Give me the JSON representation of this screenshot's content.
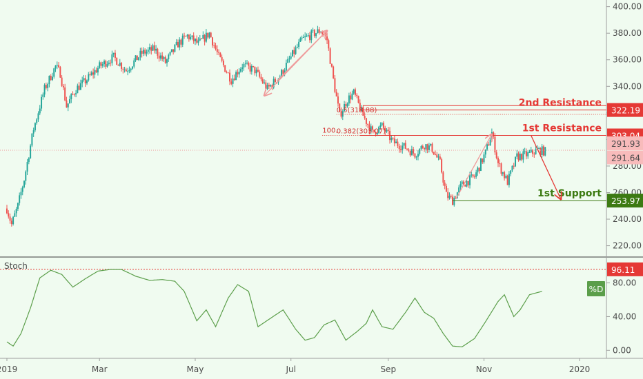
{
  "chart_data": [
    {
      "type": "candlestick",
      "symbol_note": "",
      "x_ticks": [
        "2019",
        "Mar",
        "May",
        "Jul",
        "Sep",
        "Nov",
        "2020"
      ],
      "y_ticks": [
        "400.00",
        "380.00",
        "360.00",
        "340.00",
        "320.00",
        "300.00",
        "280.00",
        "260.00",
        "240.00",
        "220.00"
      ],
      "ylim": [
        212,
        405
      ],
      "x_range": [
        "2019-01-01",
        "2019-12-31"
      ],
      "series_anchors": [
        [
          "2019-01-01",
          248
        ],
        [
          "2019-01-04",
          236
        ],
        [
          "2019-01-08",
          250
        ],
        [
          "2019-01-12",
          270
        ],
        [
          "2019-01-18",
          308
        ],
        [
          "2019-01-25",
          338
        ],
        [
          "2019-02-01",
          355
        ],
        [
          "2019-02-04",
          350
        ],
        [
          "2019-02-08",
          325
        ],
        [
          "2019-02-14",
          338
        ],
        [
          "2019-02-20",
          344
        ],
        [
          "2019-03-01",
          355
        ],
        [
          "2019-03-10",
          362
        ],
        [
          "2019-03-18",
          352
        ],
        [
          "2019-03-28",
          365
        ],
        [
          "2019-04-05",
          368
        ],
        [
          "2019-04-12",
          358
        ],
        [
          "2019-04-20",
          372
        ],
        [
          "2019-04-26",
          378
        ],
        [
          "2019-05-03",
          372
        ],
        [
          "2019-05-10",
          380
        ],
        [
          "2019-05-16",
          362
        ],
        [
          "2019-05-24",
          345
        ],
        [
          "2019-05-31",
          356
        ],
        [
          "2019-06-08",
          352
        ],
        [
          "2019-06-16",
          338
        ],
        [
          "2019-06-24",
          348
        ],
        [
          "2019-07-01",
          362
        ],
        [
          "2019-07-08",
          375
        ],
        [
          "2019-07-16",
          380
        ],
        [
          "2019-07-20",
          382
        ],
        [
          "2019-07-24",
          375
        ],
        [
          "2019-07-28",
          345
        ],
        [
          "2019-08-01",
          318
        ],
        [
          "2019-08-06",
          330
        ],
        [
          "2019-08-10",
          335
        ],
        [
          "2019-08-16",
          318
        ],
        [
          "2019-08-22",
          305
        ],
        [
          "2019-08-28",
          310
        ],
        [
          "2019-09-04",
          298
        ],
        [
          "2019-09-12",
          294
        ],
        [
          "2019-09-18",
          289
        ],
        [
          "2019-09-24",
          296
        ],
        [
          "2019-09-29",
          293
        ],
        [
          "2019-10-04",
          282
        ],
        [
          "2019-10-08",
          258
        ],
        [
          "2019-10-12",
          254
        ],
        [
          "2019-10-18",
          266
        ],
        [
          "2019-10-26",
          272
        ],
        [
          "2019-11-02",
          290
        ],
        [
          "2019-11-06",
          305
        ],
        [
          "2019-11-10",
          282
        ],
        [
          "2019-11-16",
          268
        ],
        [
          "2019-11-22",
          287
        ],
        [
          "2019-11-30",
          289
        ],
        [
          "2019-12-05",
          292
        ],
        [
          "2019-12-10",
          291
        ]
      ],
      "current_price_labels": [
        "291.93",
        "291.64"
      ],
      "levels": [
        {
          "label": "2nd Resistance",
          "value": "322.19",
          "price": 322.19,
          "color": "#e53935",
          "from": "2019-08-14"
        },
        {
          "label": "1st Resistance",
          "value": "303.04",
          "price": 303.04,
          "color": "#e53935",
          "from": "2019-08-14"
        },
        {
          "label": "1st Support",
          "value": "253.97",
          "price": 253.97,
          "color": "#3c7a12",
          "from": "2019-10-12"
        }
      ],
      "fib_labels": [
        {
          "text": "0.5(318.88)",
          "price": 318.88,
          "at": "2019-07-30"
        },
        {
          "text": "0.382(303.07)",
          "price": 303.07,
          "at": "2019-07-30"
        },
        {
          "text": "100.",
          "price": 303.5,
          "at": "2019-07-21"
        }
      ],
      "arrows": [
        {
          "from": [
            "2019-06-22",
            344
          ],
          "to": [
            "2019-07-24",
            382
          ],
          "color": "#ef9a9a"
        },
        {
          "from": [
            "2019-07-24",
            382
          ],
          "to": [
            "2019-06-14",
            333
          ],
          "color": "#ef9a9a"
        },
        {
          "from": [
            "2019-10-14",
            255
          ],
          "to": [
            "2019-11-06",
            304
          ],
          "color": "#ef9a9a"
        },
        {
          "from": [
            "2019-12-01",
            303
          ],
          "to": [
            "2019-12-20",
            255
          ],
          "color": "#e53935"
        }
      ],
      "colors": {
        "up": "#26a69a",
        "down": "#ef5350",
        "background": "#f0fbf0"
      }
    },
    {
      "type": "line",
      "indicator_label": "Stoch",
      "legend_badge": "%D",
      "y_ticks": [
        "80.00",
        "40.00",
        "0.00"
      ],
      "ylim": [
        -3,
        105
      ],
      "reference": {
        "value": "96.11",
        "level": 96.11,
        "color": "#e53935"
      },
      "line_color": "#5b9e4a",
      "series_anchors": [
        [
          "2019-01-01",
          10
        ],
        [
          "2019-01-05",
          5
        ],
        [
          "2019-01-10",
          20
        ],
        [
          "2019-01-16",
          50
        ],
        [
          "2019-01-22",
          86
        ],
        [
          "2019-01-29",
          95
        ],
        [
          "2019-02-05",
          90
        ],
        [
          "2019-02-12",
          75
        ],
        [
          "2019-02-20",
          85
        ],
        [
          "2019-02-28",
          94
        ],
        [
          "2019-03-08",
          96
        ],
        [
          "2019-03-15",
          96
        ],
        [
          "2019-03-24",
          88
        ],
        [
          "2019-04-02",
          83
        ],
        [
          "2019-04-10",
          84
        ],
        [
          "2019-04-18",
          82
        ],
        [
          "2019-04-24",
          70
        ],
        [
          "2019-05-02",
          35
        ],
        [
          "2019-05-08",
          48
        ],
        [
          "2019-05-14",
          28
        ],
        [
          "2019-05-22",
          62
        ],
        [
          "2019-05-28",
          78
        ],
        [
          "2019-06-04",
          70
        ],
        [
          "2019-06-10",
          28
        ],
        [
          "2019-06-18",
          38
        ],
        [
          "2019-06-26",
          48
        ],
        [
          "2019-07-04",
          25
        ],
        [
          "2019-07-10",
          12
        ],
        [
          "2019-07-16",
          15
        ],
        [
          "2019-07-22",
          30
        ],
        [
          "2019-07-29",
          36
        ],
        [
          "2019-08-05",
          12
        ],
        [
          "2019-08-12",
          22
        ],
        [
          "2019-08-18",
          32
        ],
        [
          "2019-08-22",
          48
        ],
        [
          "2019-08-28",
          28
        ],
        [
          "2019-09-04",
          25
        ],
        [
          "2019-09-12",
          45
        ],
        [
          "2019-09-18",
          62
        ],
        [
          "2019-09-24",
          45
        ],
        [
          "2019-09-30",
          38
        ],
        [
          "2019-10-06",
          20
        ],
        [
          "2019-10-12",
          5
        ],
        [
          "2019-10-18",
          4
        ],
        [
          "2019-10-26",
          14
        ],
        [
          "2019-11-02",
          34
        ],
        [
          "2019-11-10",
          58
        ],
        [
          "2019-11-14",
          66
        ],
        [
          "2019-11-20",
          40
        ],
        [
          "2019-11-24",
          48
        ],
        [
          "2019-11-30",
          66
        ],
        [
          "2019-12-08",
          70
        ]
      ]
    }
  ]
}
